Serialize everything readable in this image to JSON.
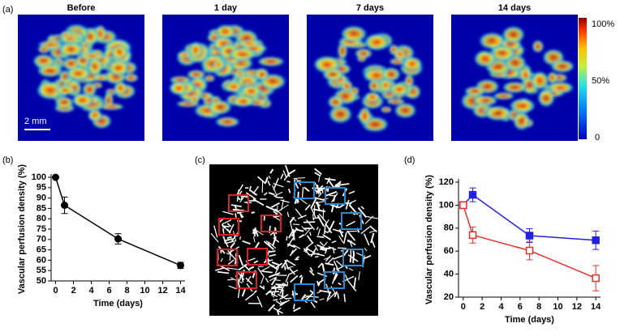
{
  "panels": {
    "a": "(a)",
    "b": "(b)",
    "c": "(c)",
    "d": "(d)"
  },
  "images": {
    "titles": [
      "Before",
      "1  day",
      "7 days",
      "14 days"
    ],
    "scale_bar": "2 mm",
    "colorbar_labels": [
      "100%",
      "50%",
      "0"
    ]
  },
  "chart_data": [
    {
      "type": "line",
      "xlabel": "Time (days)",
      "ylabel": "Vascular perfusion density (%)",
      "x": [
        0,
        1,
        7,
        14
      ],
      "xlim": [
        -0.5,
        14.5
      ],
      "xticks": [
        0,
        2,
        4,
        6,
        8,
        10,
        12,
        14
      ],
      "ylim": [
        50,
        100
      ],
      "yticks": [
        50,
        55,
        60,
        65,
        70,
        75,
        80,
        85,
        90,
        95,
        100
      ],
      "series": [
        {
          "color": "#000000",
          "marker": "circle",
          "filled": true,
          "values": [
            100,
            86.5,
            70.3,
            57.5
          ],
          "errors": [
            0,
            4,
            2.5,
            1.5
          ]
        }
      ]
    },
    {
      "type": "line",
      "xlabel": "Time (days)",
      "ylabel": "Vascular perfusion density (%)",
      "x": [
        0,
        1,
        7,
        14
      ],
      "xlim": [
        -0.5,
        14.5
      ],
      "xticks": [
        0,
        2,
        4,
        6,
        8,
        10,
        12,
        14
      ],
      "ylim": [
        20,
        120
      ],
      "yticks": [
        20,
        40,
        60,
        80,
        100,
        120
      ],
      "series": [
        {
          "color": "#2222dd",
          "marker": "square",
          "filled": true,
          "values": [
            100,
            109,
            73.5,
            69.5
          ],
          "errors": [
            0,
            6,
            6,
            8
          ]
        },
        {
          "color": "#e8302a",
          "marker": "square",
          "filled": false,
          "values": [
            100,
            74,
            60.5,
            36.5
          ],
          "errors": [
            0,
            7,
            8,
            11
          ]
        }
      ]
    }
  ]
}
